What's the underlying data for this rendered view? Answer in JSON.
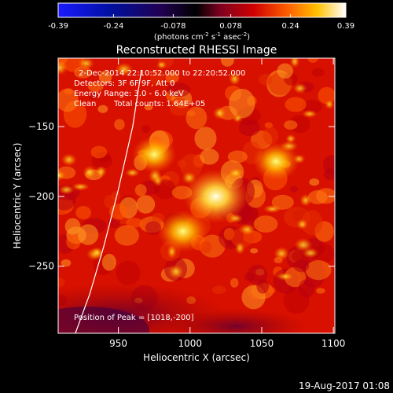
{
  "colorbar": {
    "tick_labels": [
      "-0.39",
      "-0.24",
      "-0.078",
      "0.078",
      "0.24",
      "0.39"
    ],
    "tick_values": [
      -0.39,
      -0.24,
      -0.078,
      0.078,
      0.24,
      0.39
    ],
    "range": [
      -0.39,
      0.39
    ],
    "units_prefix": "(photons cm",
    "units_exp1": "-2",
    "units_mid1": " s",
    "units_exp2": "-1",
    "units_mid2": " asec",
    "units_exp3": "-2",
    "units_suffix": ")",
    "colormap": "rhessi-fire-with-blue-negatives"
  },
  "chart_data": {
    "type": "heatmap",
    "title": "Reconstructed RHESSI Image",
    "xlabel": "Heliocentric X (arcsec)",
    "ylabel": "Heliocentric Y (arcsec)",
    "xlim": [
      908,
      1101
    ],
    "ylim": [
      -298,
      -101
    ],
    "x_ticks": [
      950,
      1000,
      1050,
      1100
    ],
    "x_tick_labels": [
      "950",
      "1000",
      "1050",
      "1100"
    ],
    "y_ticks": [
      -150,
      -200,
      -250
    ],
    "y_tick_labels": [
      "−150",
      "−200",
      "−250"
    ],
    "peak": [
      1018,
      -200
    ],
    "bright_sources": [
      {
        "x": 1018,
        "y": -200,
        "value": 0.39
      },
      {
        "x": 995,
        "y": -225,
        "value": 0.26
      },
      {
        "x": 1060,
        "y": -175,
        "value": 0.22
      },
      {
        "x": 975,
        "y": -170,
        "value": 0.2
      }
    ],
    "limb_curve": {
      "x": [
        920,
        930,
        940,
        950,
        960,
        966
      ],
      "y": [
        -298,
        -270,
        -235,
        -195,
        -150,
        -110
      ]
    }
  },
  "annotations": {
    "time_range": "2-Dec-2014 22:10:52.000 to 22:20:52.000",
    "detectors": "Detectors: 3F 6F 9F, Att 0",
    "energy": "Energy Range: 3.0 - 6.0 keV",
    "clean": "Clean",
    "counts": "Total counts: 1.64E+05",
    "peak_position": "Position of Peak = [1018,-200]"
  },
  "footer_date": "19-Aug-2017 01:08"
}
